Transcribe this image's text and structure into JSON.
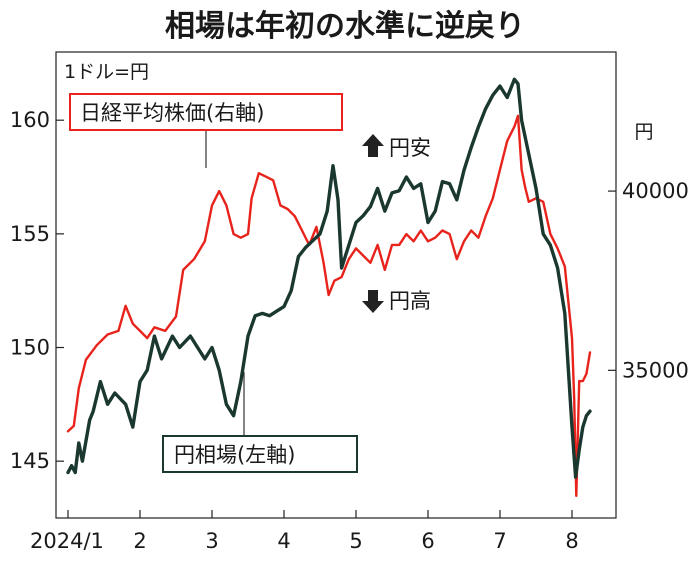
{
  "chart_data": {
    "type": "line",
    "title": "相場は年初の水準に逆戻り",
    "left_axis_unit": "1ドル=円",
    "right_axis_unit": "円",
    "x_tick_labels": [
      "2024/1",
      "2",
      "3",
      "4",
      "5",
      "6",
      "7",
      "8"
    ],
    "left_ylim": [
      142.5,
      163
    ],
    "left_yticks": [
      145,
      150,
      155,
      160
    ],
    "right_ylim": [
      30880,
      43880
    ],
    "right_yticks": [
      35000,
      40000
    ],
    "annotations": {
      "yen_weak": "円安",
      "yen_strong": "円高"
    },
    "series": [
      {
        "name": "日経平均株価(右軸)",
        "axis": "right",
        "color": "#e8231c",
        "points": [
          [
            1.0,
            33300
          ],
          [
            1.08,
            33450
          ],
          [
            1.15,
            34500
          ],
          [
            1.25,
            35300
          ],
          [
            1.4,
            35700
          ],
          [
            1.55,
            36000
          ],
          [
            1.7,
            36100
          ],
          [
            1.8,
            36800
          ],
          [
            1.9,
            36300
          ],
          [
            2.0,
            36100
          ],
          [
            2.1,
            35900
          ],
          [
            2.2,
            36200
          ],
          [
            2.35,
            36100
          ],
          [
            2.5,
            36500
          ],
          [
            2.6,
            37800
          ],
          [
            2.75,
            38100
          ],
          [
            2.9,
            38600
          ],
          [
            3.0,
            39600
          ],
          [
            3.1,
            40000
          ],
          [
            3.2,
            39600
          ],
          [
            3.3,
            38800
          ],
          [
            3.4,
            38700
          ],
          [
            3.5,
            38800
          ],
          [
            3.55,
            39800
          ],
          [
            3.65,
            40500
          ],
          [
            3.75,
            40400
          ],
          [
            3.85,
            40300
          ],
          [
            3.95,
            39600
          ],
          [
            4.05,
            39500
          ],
          [
            4.15,
            39300
          ],
          [
            4.25,
            38900
          ],
          [
            4.35,
            38500
          ],
          [
            4.45,
            39000
          ],
          [
            4.55,
            38000
          ],
          [
            4.62,
            37100
          ],
          [
            4.7,
            37500
          ],
          [
            4.8,
            37600
          ],
          [
            4.9,
            38100
          ],
          [
            5.0,
            38400
          ],
          [
            5.1,
            38200
          ],
          [
            5.2,
            38000
          ],
          [
            5.3,
            38500
          ],
          [
            5.4,
            37800
          ],
          [
            5.5,
            38500
          ],
          [
            5.6,
            38500
          ],
          [
            5.7,
            38800
          ],
          [
            5.8,
            38600
          ],
          [
            5.9,
            38900
          ],
          [
            6.0,
            38600
          ],
          [
            6.1,
            38700
          ],
          [
            6.2,
            38900
          ],
          [
            6.3,
            38800
          ],
          [
            6.4,
            38100
          ],
          [
            6.5,
            38600
          ],
          [
            6.6,
            38900
          ],
          [
            6.7,
            38700
          ],
          [
            6.8,
            39300
          ],
          [
            6.9,
            39800
          ],
          [
            7.0,
            40600
          ],
          [
            7.1,
            41400
          ],
          [
            7.2,
            41800
          ],
          [
            7.25,
            42100
          ],
          [
            7.3,
            40600
          ],
          [
            7.35,
            40100
          ],
          [
            7.4,
            39700
          ],
          [
            7.5,
            39800
          ],
          [
            7.6,
            39700
          ],
          [
            7.7,
            38800
          ],
          [
            7.8,
            38400
          ],
          [
            7.9,
            37900
          ],
          [
            8.0,
            35900
          ],
          [
            8.03,
            34200
          ],
          [
            8.06,
            31500
          ],
          [
            8.1,
            34700
          ],
          [
            8.15,
            34700
          ],
          [
            8.2,
            34900
          ],
          [
            8.25,
            35500
          ]
        ]
      },
      {
        "name": "円相場(左軸)",
        "axis": "left",
        "color": "#1a3830",
        "points": [
          [
            1.0,
            144.5
          ],
          [
            1.05,
            144.8
          ],
          [
            1.1,
            144.5
          ],
          [
            1.15,
            145.8
          ],
          [
            1.2,
            145.0
          ],
          [
            1.3,
            146.8
          ],
          [
            1.35,
            147.2
          ],
          [
            1.45,
            148.5
          ],
          [
            1.55,
            147.5
          ],
          [
            1.65,
            148.0
          ],
          [
            1.8,
            147.5
          ],
          [
            1.9,
            146.5
          ],
          [
            2.0,
            148.5
          ],
          [
            2.1,
            149.0
          ],
          [
            2.2,
            150.5
          ],
          [
            2.3,
            149.5
          ],
          [
            2.45,
            150.5
          ],
          [
            2.55,
            150.0
          ],
          [
            2.7,
            150.5
          ],
          [
            2.8,
            150.0
          ],
          [
            2.9,
            149.5
          ],
          [
            3.0,
            150.0
          ],
          [
            3.1,
            149.0
          ],
          [
            3.2,
            147.5
          ],
          [
            3.3,
            147.0
          ],
          [
            3.4,
            148.5
          ],
          [
            3.5,
            150.5
          ],
          [
            3.6,
            151.4
          ],
          [
            3.7,
            151.5
          ],
          [
            3.8,
            151.4
          ],
          [
            3.9,
            151.6
          ],
          [
            4.0,
            151.8
          ],
          [
            4.1,
            152.5
          ],
          [
            4.2,
            154.0
          ],
          [
            4.3,
            154.4
          ],
          [
            4.4,
            154.7
          ],
          [
            4.5,
            155.0
          ],
          [
            4.6,
            156.0
          ],
          [
            4.68,
            158.0
          ],
          [
            4.75,
            156.5
          ],
          [
            4.8,
            153.5
          ],
          [
            4.9,
            154.5
          ],
          [
            5.0,
            155.5
          ],
          [
            5.1,
            155.8
          ],
          [
            5.2,
            156.2
          ],
          [
            5.3,
            157.0
          ],
          [
            5.4,
            156.0
          ],
          [
            5.5,
            156.8
          ],
          [
            5.6,
            156.9
          ],
          [
            5.7,
            157.5
          ],
          [
            5.8,
            157.0
          ],
          [
            5.9,
            157.2
          ],
          [
            6.0,
            155.5
          ],
          [
            6.1,
            156.0
          ],
          [
            6.2,
            157.3
          ],
          [
            6.3,
            157.2
          ],
          [
            6.4,
            156.5
          ],
          [
            6.5,
            157.8
          ],
          [
            6.6,
            158.8
          ],
          [
            6.7,
            159.7
          ],
          [
            6.8,
            160.5
          ],
          [
            6.9,
            161.1
          ],
          [
            7.0,
            161.5
          ],
          [
            7.1,
            161.0
          ],
          [
            7.2,
            161.8
          ],
          [
            7.25,
            161.6
          ],
          [
            7.3,
            160.0
          ],
          [
            7.4,
            158.5
          ],
          [
            7.5,
            157.0
          ],
          [
            7.6,
            155.0
          ],
          [
            7.7,
            154.5
          ],
          [
            7.8,
            153.5
          ],
          [
            7.9,
            151.5
          ],
          [
            8.0,
            146.5
          ],
          [
            8.05,
            144.3
          ],
          [
            8.1,
            145.5
          ],
          [
            8.15,
            146.5
          ],
          [
            8.2,
            147.0
          ],
          [
            8.25,
            147.2
          ]
        ]
      }
    ]
  }
}
